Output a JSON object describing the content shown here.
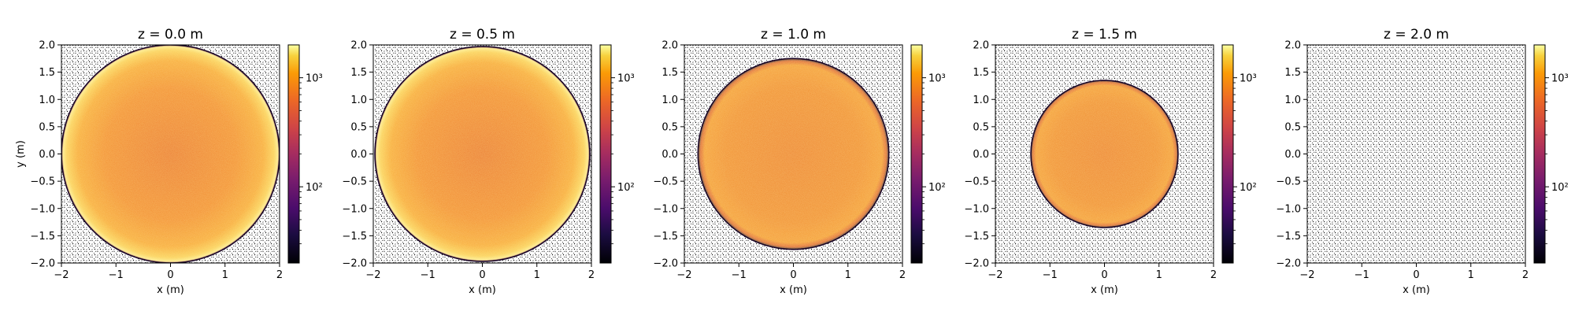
{
  "chart_data": [
    {
      "type": "heatmap",
      "title": "z = 0.0 m",
      "xlabel": "x (m)",
      "ylabel": "y (m)",
      "xlim": [
        -2,
        2
      ],
      "ylim": [
        -2,
        2
      ],
      "x_ticks": [
        -2,
        -1,
        0,
        1,
        2
      ],
      "y_ticks": [
        -2.0,
        -1.5,
        -1.0,
        -0.5,
        0.0,
        0.5,
        1.0,
        1.5,
        2.0
      ],
      "beam_radius_m": 2.0,
      "colorbar": {
        "scale": "log",
        "range": [
          20,
          2000
        ],
        "ticks": [
          "10²",
          "10³"
        ],
        "colormap": "inferno"
      },
      "background": "hatched (no data)"
    },
    {
      "type": "heatmap",
      "title": "z = 0.5 m",
      "xlabel": "x (m)",
      "ylabel": "",
      "xlim": [
        -2,
        2
      ],
      "ylim": [
        -2,
        2
      ],
      "x_ticks": [
        -2,
        -1,
        0,
        1,
        2
      ],
      "y_ticks": [
        -2.0,
        -1.5,
        -1.0,
        -0.5,
        0.0,
        0.5,
        1.0,
        1.5,
        2.0
      ],
      "beam_radius_m": 1.97,
      "colorbar": {
        "scale": "log",
        "range": [
          20,
          2000
        ],
        "ticks": [
          "10²",
          "10³"
        ],
        "colormap": "inferno"
      },
      "background": "hatched (no data)"
    },
    {
      "type": "heatmap",
      "title": "z = 1.0 m",
      "xlabel": "x (m)",
      "ylabel": "",
      "xlim": [
        -2,
        2
      ],
      "ylim": [
        -2,
        2
      ],
      "x_ticks": [
        -2,
        -1,
        0,
        1,
        2
      ],
      "y_ticks": [
        -2.0,
        -1.5,
        -1.0,
        -0.5,
        0.0,
        0.5,
        1.0,
        1.5,
        2.0
      ],
      "beam_radius_m": 1.75,
      "colorbar": {
        "scale": "log",
        "range": [
          20,
          2000
        ],
        "ticks": [
          "10²",
          "10³"
        ],
        "colormap": "inferno"
      },
      "background": "hatched (no data)"
    },
    {
      "type": "heatmap",
      "title": "z = 1.5 m",
      "xlabel": "x (m)",
      "ylabel": "",
      "xlim": [
        -2,
        2
      ],
      "ylim": [
        -2,
        2
      ],
      "x_ticks": [
        -2,
        -1,
        0,
        1,
        2
      ],
      "y_ticks": [
        -2.0,
        -1.5,
        -1.0,
        -0.5,
        0.0,
        0.5,
        1.0,
        1.5,
        2.0
      ],
      "beam_radius_m": 1.35,
      "colorbar": {
        "scale": "log",
        "range": [
          20,
          2000
        ],
        "ticks": [
          "10²",
          "10³"
        ],
        "colormap": "inferno"
      },
      "background": "hatched (no data)"
    },
    {
      "type": "heatmap",
      "title": "z = 2.0 m",
      "xlabel": "x (m)",
      "ylabel": "",
      "xlim": [
        -2,
        2
      ],
      "ylim": [
        -2,
        2
      ],
      "x_ticks": [
        -2,
        -1,
        0,
        1,
        2
      ],
      "y_ticks": [
        -2.0,
        -1.5,
        -1.0,
        -0.5,
        0.0,
        0.5,
        1.0,
        1.5,
        2.0
      ],
      "beam_radius_m": 0,
      "colorbar": {
        "scale": "log",
        "range": [
          20,
          2000
        ],
        "ticks": [
          "10²",
          "10³"
        ],
        "colormap": "inferno"
      },
      "background": "hatched (no data)"
    }
  ]
}
